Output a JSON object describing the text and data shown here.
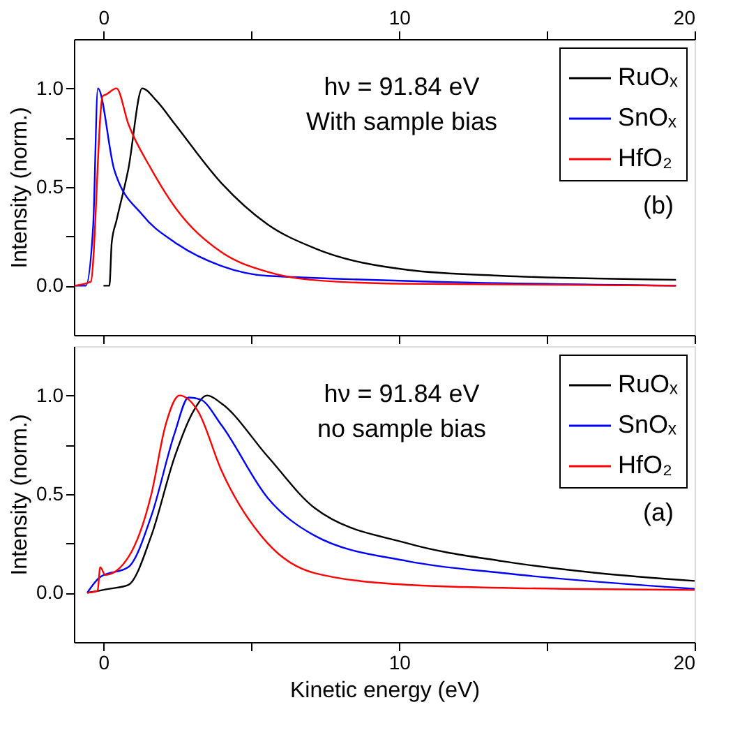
{
  "chart_data": [
    {
      "type": "line",
      "ylabel": "Intensity (norm.)",
      "annotations": [
        "hν = 91.84 eV",
        "With sample bias",
        "(b)"
      ],
      "xlim": [
        -1,
        20
      ],
      "xticks": [
        {
          "value": 0,
          "label": null
        },
        {
          "value": 5,
          "label": null
        },
        {
          "value": 10,
          "label": null
        },
        {
          "value": 15,
          "label": null
        },
        {
          "value": 20,
          "label": null
        }
      ],
      "x2lim": [
        -1,
        20
      ],
      "x2ticks": [
        0,
        {
          "value": 5,
          "label": null
        },
        10,
        {
          "value": 15,
          "label": null
        },
        20
      ],
      "ylim": [
        -0.25,
        1.25
      ],
      "yticks": [
        {
          "value": 0,
          "label": "0.0"
        },
        {
          "value": 0.25,
          "label": null
        },
        {
          "value": 0.5,
          "label": "0.5"
        },
        {
          "value": 0.75,
          "label": null
        },
        {
          "value": 1,
          "label": "1.0"
        }
      ],
      "tick_labels": "y",
      "legend": "top right",
      "grid": false,
      "line_style": "solid",
      "series": [
        {
          "name": "RuOₓ",
          "color": "#000000",
          "x": [
            0.0,
            0.2,
            0.28,
            0.44,
            0.84,
            1.31,
            1.78,
            2.41,
            3.99,
            5.56,
            7.14,
            10.3,
            13.5,
            19.37
          ],
          "values": [
            0.0,
            0.0,
            0.22,
            0.33,
            0.59,
            1.0,
            0.94,
            0.82,
            0.52,
            0.31,
            0.19,
            0.08,
            0.05,
            0.03
          ]
        },
        {
          "name": "SnOₓ",
          "color": "#0000ff",
          "x": [
            -0.98,
            -0.6,
            -0.35,
            -0.19,
            0.36,
            1.31,
            2.41,
            3.99,
            5.56,
            19.37
          ],
          "values": [
            0.0,
            0.0,
            0.3,
            1.0,
            0.59,
            0.36,
            0.22,
            0.1,
            0.05,
            0.0
          ]
        },
        {
          "name": "HfO₂",
          "color": "#ff0000",
          "x": [
            -0.98,
            -0.43,
            -0.03,
            0.1,
            0.44,
            0.84,
            1.62,
            2.41,
            3.99,
            5.56,
            7.0,
            10.0,
            19.37
          ],
          "values": [
            0.0,
            0.02,
            0.96,
            0.97,
            1.0,
            0.82,
            0.59,
            0.4,
            0.17,
            0.07,
            0.03,
            0.01,
            0.0
          ]
        }
      ]
    },
    {
      "type": "line",
      "xlabel": "Kinetic energy (eV)",
      "ylabel": "Intensity (norm.)",
      "annotations": [
        "hν = 91.84 eV",
        "no sample bias",
        "(a)"
      ],
      "xlim": [
        -1,
        20
      ],
      "xticks": [
        0,
        {
          "value": 5,
          "label": null
        },
        10,
        {
          "value": 15,
          "label": null
        },
        20
      ],
      "ylim": [
        -0.25,
        1.25
      ],
      "yticks": [
        {
          "value": 0,
          "label": "0.0"
        },
        {
          "value": 0.25,
          "label": null
        },
        {
          "value": 0.5,
          "label": "0.5"
        },
        {
          "value": 0.75,
          "label": null
        },
        {
          "value": 1,
          "label": "1.0"
        }
      ],
      "legend": "top right",
      "grid": false,
      "line_style": "solid",
      "series": [
        {
          "name": "RuOₓ",
          "color": "#000000",
          "x": [
            -0.55,
            0.2,
            0.84,
            1.62,
            2.41,
            3.04,
            3.51,
            3.99,
            5.56,
            7.14,
            10.3,
            13.5,
            16.7,
            20.0
          ],
          "values": [
            0.0,
            0.02,
            0.04,
            0.29,
            0.69,
            0.92,
            1.0,
            0.96,
            0.69,
            0.43,
            0.25,
            0.16,
            0.1,
            0.06
          ]
        },
        {
          "name": "SnOₓ",
          "color": "#0000ff",
          "x": [
            -0.55,
            -0.11,
            0.84,
            1.62,
            2.41,
            2.88,
            3.28,
            3.99,
            5.56,
            7.14,
            10.3,
            13.5,
            20.0
          ],
          "values": [
            0.0,
            0.08,
            0.13,
            0.39,
            0.81,
            0.99,
            0.98,
            0.85,
            0.48,
            0.29,
            0.16,
            0.1,
            0.02
          ]
        },
        {
          "name": "HfO₂",
          "color": "#ff0000",
          "x": [
            -0.55,
            -0.2,
            -0.11,
            0.06,
            0.84,
            1.62,
            2.1,
            2.57,
            3.2,
            3.99,
            5.56,
            7.14,
            10.3,
            13.5,
            20.0
          ],
          "values": [
            0.0,
            0.01,
            0.13,
            0.09,
            0.18,
            0.5,
            0.85,
            1.0,
            0.92,
            0.62,
            0.25,
            0.1,
            0.04,
            0.025,
            0.014
          ]
        }
      ]
    }
  ]
}
